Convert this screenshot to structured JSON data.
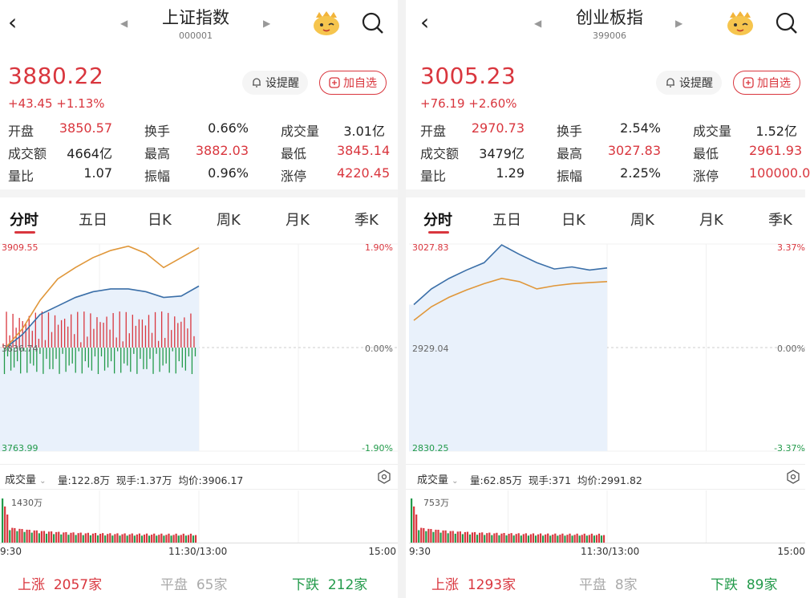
{
  "panels": [
    {
      "name": "上证指数",
      "code": "000001",
      "price": "3880.22",
      "change": "+43.45",
      "change_pct": "+1.13%",
      "buttons": {
        "alert": "设提醒",
        "add": "加自选"
      },
      "stats": [
        [
          {
            "label": "开盘",
            "value": "3850.57",
            "tone": "red"
          },
          {
            "label": "换手",
            "value": "0.66%",
            "tone": "dark"
          },
          {
            "label": "成交量",
            "value": "3.01亿",
            "tone": "dark"
          }
        ],
        [
          {
            "label": "成交额",
            "value": "4664亿",
            "tone": "dark"
          },
          {
            "label": "最高",
            "value": "3882.03",
            "tone": "red"
          },
          {
            "label": "最低",
            "value": "3845.14",
            "tone": "red"
          }
        ],
        [
          {
            "label": "量比",
            "value": "1.07",
            "tone": "dark"
          },
          {
            "label": "振幅",
            "value": "0.96%",
            "tone": "dark"
          },
          {
            "label": "涨停",
            "value": "4220.45",
            "tone": "red"
          }
        ]
      ],
      "tabs": [
        "分时",
        "五日",
        "日K",
        "周K",
        "月K",
        "季K"
      ],
      "axis": {
        "top_left": "3909.55",
        "mid_left": "3836.74",
        "bottom_left": "3763.99",
        "top_right": "1.90%",
        "mid_right": "0.00%",
        "bottom_right": "-1.90%"
      },
      "volume": {
        "selector": "成交量",
        "amount": "量:122.8万",
        "current": "现手:1.37万",
        "avg": "均价:3906.17",
        "max_label": "1430万"
      },
      "times": {
        "start": "9:30",
        "mid": "11:30/13:00",
        "end": "15:00"
      },
      "breadth": {
        "up_label": "上涨",
        "up_value": "2057家",
        "flat_label": "平盘",
        "flat_value": "65家",
        "down_label": "下跌",
        "down_value": "212家"
      }
    },
    {
      "name": "创业板指",
      "code": "399006",
      "price": "3005.23",
      "change": "+76.19",
      "change_pct": "+2.60%",
      "buttons": {
        "alert": "设提醒",
        "add": "加自选"
      },
      "stats": [
        [
          {
            "label": "开盘",
            "value": "2970.73",
            "tone": "red"
          },
          {
            "label": "换手",
            "value": "2.54%",
            "tone": "dark"
          },
          {
            "label": "成交量",
            "value": "1.52亿",
            "tone": "dark"
          }
        ],
        [
          {
            "label": "成交额",
            "value": "3479亿",
            "tone": "dark"
          },
          {
            "label": "最高",
            "value": "3027.83",
            "tone": "red"
          },
          {
            "label": "最低",
            "value": "2961.93",
            "tone": "red"
          }
        ],
        [
          {
            "label": "量比",
            "value": "1.29",
            "tone": "dark"
          },
          {
            "label": "振幅",
            "value": "2.25%",
            "tone": "dark"
          },
          {
            "label": "涨停",
            "value": "100000.0",
            "tone": "red"
          }
        ]
      ],
      "tabs": [
        "分时",
        "五日",
        "日K",
        "周K",
        "月K",
        "季K"
      ],
      "axis": {
        "top_left": "3027.83",
        "mid_left": "2929.04",
        "bottom_left": "2830.25",
        "top_right": "3.37%",
        "mid_right": "0.00%",
        "bottom_right": "-3.37%"
      },
      "volume": {
        "selector": "成交量",
        "amount": "量:62.85万",
        "current": "现手:371",
        "avg": "均价:2991.82",
        "max_label": "753万"
      },
      "times": {
        "start": "9:30",
        "mid": "11:30/13:00",
        "end": "15:00"
      },
      "breadth": {
        "up_label": "上涨",
        "up_value": "1293家",
        "flat_label": "平盘",
        "flat_value": "8家",
        "down_label": "下跌",
        "down_value": "89家"
      }
    }
  ],
  "colors": {
    "up": "#d9363e",
    "down": "#229a4a",
    "price_line": "#3b6fa8",
    "avg_line": "#e0973a",
    "fill": "#e9f1fb"
  },
  "icons": [
    "back-arrow-icon",
    "prev-triangle-icon",
    "next-triangle-icon",
    "mascot-icon",
    "search-icon",
    "bell-icon",
    "plus-box-icon",
    "chevron-down-icon",
    "settings-hex-icon"
  ],
  "chart_data": [
    {
      "type": "line",
      "title": "",
      "series": [
        {
          "values": [
            3836,
            3846,
            3860,
            3866,
            3872,
            3876,
            3878,
            3878,
            3876,
            3872,
            3873,
            3880
          ]
        },
        {
          "values": [
            3836,
            3850,
            3870,
            3885,
            3893,
            3900,
            3905,
            3908,
            3903,
            3893,
            3900,
            3907
          ]
        }
      ],
      "ylim": [
        3763.99,
        3909.55
      ]
    },
    {
      "type": "line",
      "title": "",
      "series": [
        {
          "values": [
            2970,
            2985,
            2995,
            3003,
            3010,
            3027,
            3018,
            3010,
            3004,
            3006,
            3003,
            3005
          ]
        },
        {
          "values": [
            2955,
            2968,
            2977,
            2984,
            2990,
            2995,
            2992,
            2985,
            2988,
            2990,
            2991,
            2992
          ]
        }
      ],
      "ylim": [
        2830.25,
        3027.83
      ]
    }
  ]
}
